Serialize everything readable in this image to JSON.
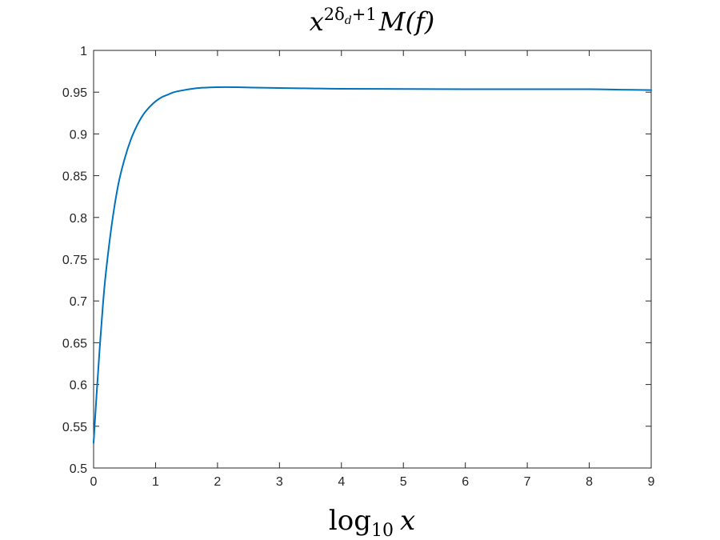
{
  "chart_data": {
    "type": "line",
    "title": {
      "base": "x",
      "exponent": "2δ",
      "exponent_sub": "d",
      "exponent_tail": "+1",
      "rest": "M(f)"
    },
    "xlabel": {
      "fn": "log",
      "sub": "10",
      "var": "x"
    },
    "ylabel": "",
    "xlim": [
      0,
      9
    ],
    "ylim": [
      0.5,
      1
    ],
    "x_ticks": [
      "0",
      "1",
      "2",
      "3",
      "4",
      "5",
      "6",
      "7",
      "8",
      "9"
    ],
    "y_ticks": [
      "0.5",
      "0.55",
      "0.6",
      "0.65",
      "0.7",
      "0.75",
      "0.8",
      "0.85",
      "0.9",
      "0.95",
      "1"
    ],
    "grid": false,
    "legend": "none",
    "series": [
      {
        "color": "#0072BD",
        "x": [
          0,
          0.05,
          0.1,
          0.15,
          0.2,
          0.3,
          0.4,
          0.5,
          0.6,
          0.7,
          0.8,
          0.9,
          1.0,
          1.1,
          1.2,
          1.3,
          1.5,
          1.7,
          2.0,
          2.3,
          2.6,
          3.0,
          3.5,
          4.0,
          5.0,
          6.0,
          7.0,
          8.0,
          8.5,
          9.0
        ],
        "y": [
          0.53,
          0.59,
          0.645,
          0.695,
          0.735,
          0.795,
          0.84,
          0.87,
          0.893,
          0.91,
          0.923,
          0.932,
          0.939,
          0.944,
          0.947,
          0.95,
          0.953,
          0.955,
          0.956,
          0.956,
          0.9555,
          0.955,
          0.9545,
          0.954,
          0.9538,
          0.9536,
          0.9535,
          0.9535,
          0.953,
          0.9525
        ]
      }
    ]
  }
}
